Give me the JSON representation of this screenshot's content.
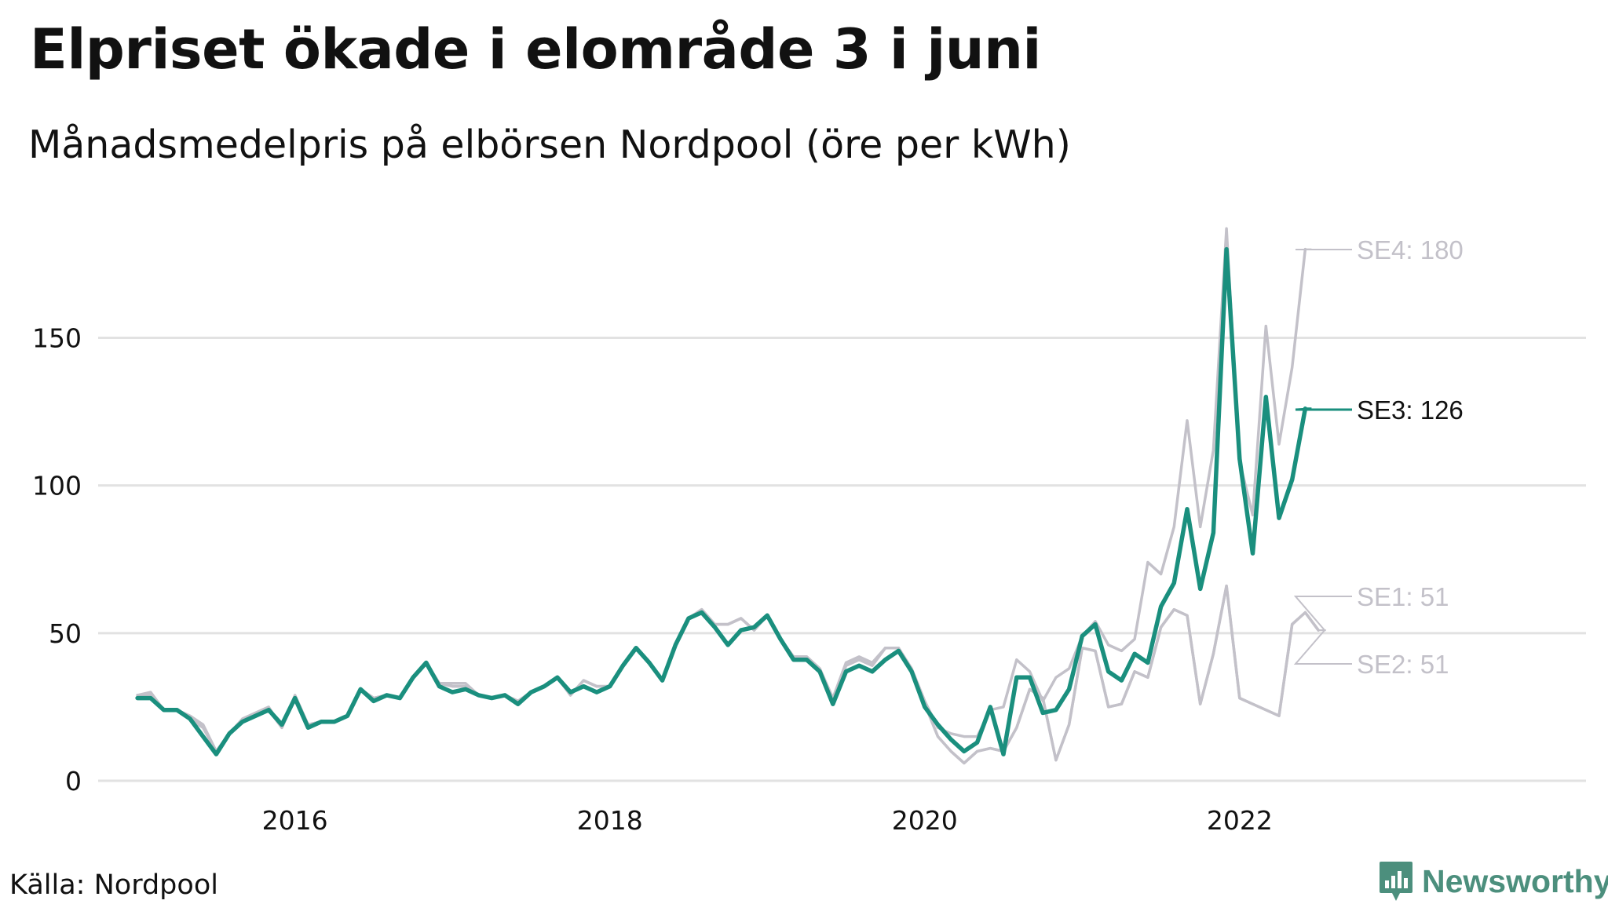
{
  "title": "Elpriset ökade i elområde 3 i juni",
  "subtitle": "Månadsmedelpris på elbörsen Nordpool (öre per kWh)",
  "source": "Källa: Nordpool",
  "brand": {
    "name": "Newsworthy",
    "icon": "bar-chart-logo-icon"
  },
  "colors": {
    "highlight": "#1a8f7e",
    "context": "#c3c1c9",
    "grid": "#e2e2e2"
  },
  "chart_data": {
    "type": "line",
    "title": "Elpriset ökade i elområde 3 i juni",
    "subtitle": "Månadsmedelpris på elbörsen Nordpool (öre per kWh)",
    "xlabel": "",
    "ylabel": "",
    "unit": "öre per kWh",
    "x_start": "2015-01",
    "x_step": "month",
    "xlim": [
      2014.75,
      2024.2
    ],
    "ylim": [
      0,
      190
    ],
    "yticks": [
      0,
      50,
      100,
      150
    ],
    "xticks": [
      {
        "value": 2016,
        "label": "2016"
      },
      {
        "value": 2018,
        "label": "2018"
      },
      {
        "value": 2020,
        "label": "2020"
      },
      {
        "value": 2022,
        "label": "2022"
      }
    ],
    "grid": true,
    "highlight_series": "SE3",
    "series": [
      {
        "name": "SE1",
        "label": "SE1: 51",
        "emphasis": false,
        "values": [
          29,
          29,
          24,
          24,
          21,
          18,
          10,
          16,
          20,
          22,
          24,
          18,
          28,
          19,
          20,
          20,
          22,
          31,
          28,
          29,
          28,
          35,
          40,
          33,
          32,
          32,
          29,
          28,
          29,
          27,
          30,
          32,
          35,
          29,
          34,
          32,
          32,
          39,
          45,
          40,
          34,
          46,
          55,
          58,
          53,
          53,
          55,
          51,
          56,
          48,
          42,
          42,
          38,
          27,
          39,
          41,
          39,
          45,
          45,
          37,
          26,
          15,
          10,
          6,
          10,
          11,
          10,
          18,
          31,
          28,
          7,
          19,
          45,
          44,
          25,
          26,
          37,
          35,
          52,
          58,
          56,
          26,
          43,
          66,
          28,
          26,
          24,
          22,
          53,
          57,
          51
        ]
      },
      {
        "name": "SE2",
        "label": "SE2: 51",
        "emphasis": false,
        "values": [
          29,
          29,
          24,
          24,
          21,
          18,
          10,
          16,
          20,
          22,
          24,
          18,
          28,
          19,
          20,
          20,
          22,
          31,
          28,
          29,
          28,
          35,
          40,
          33,
          32,
          32,
          29,
          28,
          29,
          27,
          30,
          32,
          35,
          29,
          34,
          32,
          32,
          39,
          45,
          40,
          34,
          46,
          55,
          58,
          53,
          53,
          55,
          51,
          56,
          48,
          42,
          42,
          38,
          27,
          39,
          41,
          39,
          45,
          45,
          37,
          26,
          15,
          10,
          6,
          10,
          11,
          10,
          18,
          31,
          28,
          7,
          19,
          45,
          44,
          25,
          26,
          37,
          35,
          52,
          58,
          56,
          26,
          43,
          66,
          28,
          26,
          24,
          22,
          53,
          57,
          51
        ]
      },
      {
        "name": "SE4",
        "label": "SE4: 180",
        "emphasis": false,
        "values": [
          29,
          30,
          24,
          24,
          22,
          19,
          10,
          16,
          21,
          23,
          25,
          18,
          29,
          19,
          20,
          20,
          22,
          31,
          28,
          29,
          28,
          35,
          40,
          33,
          33,
          33,
          29,
          28,
          29,
          27,
          30,
          32,
          35,
          29,
          34,
          32,
          32,
          39,
          45,
          40,
          34,
          46,
          55,
          58,
          53,
          53,
          55,
          51,
          56,
          48,
          42,
          42,
          38,
          28,
          40,
          42,
          40,
          45,
          45,
          38,
          27,
          18,
          16,
          15,
          15,
          24,
          25,
          41,
          37,
          27,
          35,
          38,
          49,
          54,
          46,
          44,
          48,
          74,
          70,
          86,
          122,
          86,
          112,
          187,
          108,
          90,
          154,
          114,
          140,
          180
        ]
      },
      {
        "name": "SE3",
        "label": "SE3: 126",
        "emphasis": true,
        "values": [
          28,
          28,
          24,
          24,
          21,
          15,
          9,
          16,
          20,
          22,
          24,
          19,
          28,
          18,
          20,
          20,
          22,
          31,
          27,
          29,
          28,
          35,
          40,
          32,
          30,
          31,
          29,
          28,
          29,
          26,
          30,
          32,
          35,
          30,
          32,
          30,
          32,
          39,
          45,
          40,
          34,
          46,
          55,
          57,
          52,
          46,
          51,
          52,
          56,
          48,
          41,
          41,
          37,
          26,
          37,
          39,
          37,
          41,
          44,
          37,
          25,
          19,
          14,
          10,
          13,
          25,
          9,
          35,
          35,
          23,
          24,
          31,
          49,
          53,
          37,
          34,
          43,
          40,
          59,
          67,
          92,
          65,
          84,
          180,
          109,
          77,
          130,
          89,
          102,
          126
        ]
      }
    ]
  }
}
